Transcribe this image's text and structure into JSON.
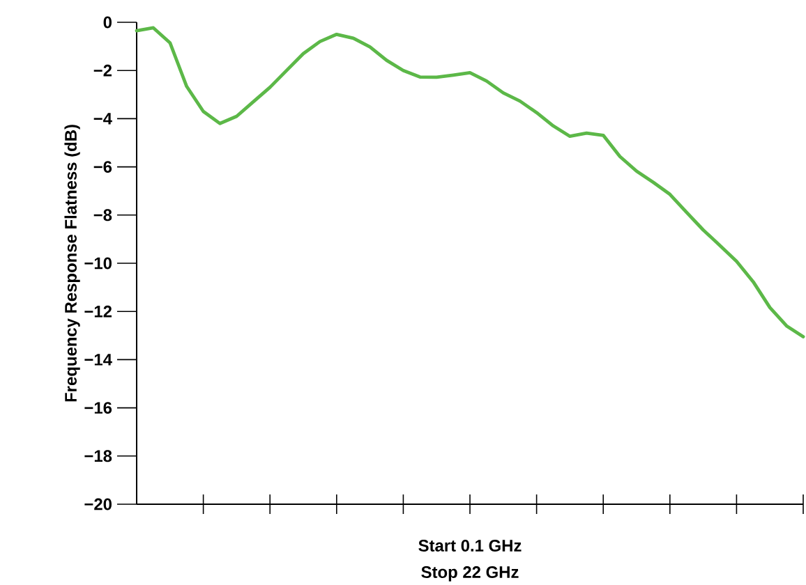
{
  "chart_data": {
    "type": "line",
    "ylabel": "Frequency Response Flatness (dB)",
    "annotations": [
      "Start 0.1 GHz",
      "Stop 22 GHz"
    ],
    "categories": [
      null,
      null,
      null,
      null,
      null,
      null,
      null,
      null,
      null,
      null,
      null,
      null,
      null,
      null,
      null,
      null,
      null,
      null,
      null,
      null,
      null,
      null,
      null,
      null,
      null,
      null,
      null,
      null,
      null,
      null,
      null,
      null,
      null,
      null,
      null,
      null,
      null,
      null,
      null,
      null,
      null
    ],
    "series": [
      {
        "color": "#5cb848",
        "values": [
          -0.35,
          -0.23,
          -0.85,
          -2.66,
          -3.7,
          -4.2,
          -3.9,
          -3.3,
          -2.7,
          -2.0,
          -1.3,
          -0.8,
          -0.5,
          -0.66,
          -1.02,
          -1.58,
          -2.0,
          -2.27,
          -2.28,
          -2.19,
          -2.09,
          -2.44,
          -2.93,
          -3.27,
          -3.75,
          -4.3,
          -4.73,
          -4.6,
          -4.69,
          -5.57,
          -6.18,
          -6.64,
          -7.14,
          -7.89,
          -8.62,
          -9.26,
          -9.92,
          -10.77,
          -11.84,
          -12.6,
          -13.05
        ]
      }
    ],
    "ylim": [
      -20,
      0
    ],
    "yticks": [
      {
        "value": -20,
        "label": "−20"
      },
      {
        "value": -18,
        "label": "−18"
      },
      {
        "value": -16,
        "label": "−16"
      },
      {
        "value": -14,
        "label": "−14"
      },
      {
        "value": -12,
        "label": "−12"
      },
      {
        "value": -10,
        "label": "−10"
      },
      {
        "value": -8,
        "label": "−8"
      },
      {
        "value": -6,
        "label": "−6"
      },
      {
        "value": -4,
        "label": "−4"
      },
      {
        "value": -2,
        "label": "−2"
      },
      {
        "value": 0,
        "label": "0"
      }
    ],
    "tick_labels": "y",
    "marker": "none",
    "line_style": "solid"
  }
}
